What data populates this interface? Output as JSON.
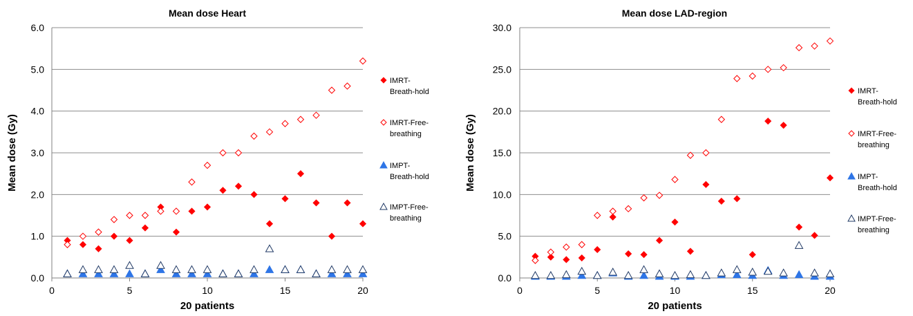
{
  "chart_data": [
    {
      "type": "scatter",
      "title": "Mean dose Heart",
      "xlabel": "20 patients",
      "ylabel": "Mean dose (Gy)",
      "xlim": [
        0,
        20
      ],
      "ylim": [
        0,
        6
      ],
      "xticks": [
        0,
        5,
        10,
        15,
        20
      ],
      "xtick_labels": [
        "0",
        "5",
        "10",
        "15",
        "20"
      ],
      "yticks": [
        0,
        1,
        2,
        3,
        4,
        5,
        6
      ],
      "ytick_labels": [
        "0.0",
        "1.0",
        "2.0",
        "3.0",
        "4.0",
        "5.0",
        "6.0"
      ],
      "grid": "horizontal",
      "legend_position": "right",
      "series": [
        {
          "name": "IMRT-Breath-hold",
          "legend_lines": [
            "IMRT-",
            "Breath-hold"
          ],
          "marker": "diamond",
          "filled": true,
          "color": "#ff0000",
          "x": [
            1,
            2,
            3,
            4,
            5,
            6,
            7,
            8,
            9,
            10,
            11,
            12,
            13,
            14,
            15,
            16,
            17,
            18,
            19,
            20
          ],
          "y": [
            0.9,
            0.8,
            0.7,
            1.0,
            0.9,
            1.2,
            1.7,
            1.1,
            1.6,
            1.7,
            2.1,
            2.2,
            2.0,
            1.3,
            1.9,
            2.5,
            1.8,
            1.0,
            1.8,
            1.3
          ]
        },
        {
          "name": "IMRT-Free-breathing",
          "legend_lines": [
            "IMRT-Free-",
            "breathing"
          ],
          "marker": "diamond",
          "filled": false,
          "color": "#ff0000",
          "x": [
            1,
            2,
            3,
            4,
            5,
            6,
            7,
            8,
            9,
            10,
            11,
            12,
            13,
            14,
            15,
            16,
            17,
            18,
            19,
            20
          ],
          "y": [
            0.8,
            1.0,
            1.1,
            1.4,
            1.5,
            1.5,
            1.6,
            1.6,
            2.3,
            2.7,
            3.0,
            3.0,
            3.4,
            3.5,
            3.7,
            3.8,
            3.9,
            4.5,
            4.6,
            5.2
          ]
        },
        {
          "name": "IMPT-Breath-hold",
          "legend_lines": [
            "IMPT-",
            "Breath-hold"
          ],
          "marker": "triangle",
          "filled": true,
          "color": "#2e75e6",
          "x": [
            1,
            2,
            3,
            4,
            5,
            6,
            7,
            8,
            9,
            10,
            11,
            12,
            13,
            14,
            15,
            16,
            17,
            18,
            19,
            20
          ],
          "y": [
            0.1,
            0.1,
            0.1,
            0.1,
            0.1,
            0.1,
            0.2,
            0.1,
            0.1,
            0.1,
            0.1,
            0.1,
            0.1,
            0.2,
            0.2,
            0.2,
            0.1,
            0.1,
            0.1,
            0.1
          ]
        },
        {
          "name": "IMPT-Free-breathing",
          "legend_lines": [
            "IMPT-Free-",
            "breathing"
          ],
          "marker": "triangle",
          "filled": false,
          "color": "#1f3864",
          "x": [
            1,
            2,
            3,
            4,
            5,
            6,
            7,
            8,
            9,
            10,
            11,
            12,
            13,
            14,
            15,
            16,
            17,
            18,
            19,
            20
          ],
          "y": [
            0.1,
            0.2,
            0.2,
            0.2,
            0.3,
            0.1,
            0.3,
            0.2,
            0.2,
            0.2,
            0.1,
            0.1,
            0.2,
            0.7,
            0.2,
            0.2,
            0.1,
            0.2,
            0.2,
            0.2
          ]
        }
      ]
    },
    {
      "type": "scatter",
      "title": "Mean dose LAD-region",
      "xlabel": "20 patients",
      "ylabel": "Mean dose (Gy)",
      "xlim": [
        0,
        20
      ],
      "ylim": [
        0,
        30
      ],
      "xticks": [
        0,
        5,
        10,
        15,
        20
      ],
      "xtick_labels": [
        "0",
        "5",
        "10",
        "15",
        "20"
      ],
      "yticks": [
        0,
        5,
        10,
        15,
        20,
        25,
        30
      ],
      "ytick_labels": [
        "0.0",
        "5.0",
        "10.0",
        "15.0",
        "20.0",
        "25.0",
        "30.0"
      ],
      "grid": "horizontal",
      "legend_position": "right",
      "series": [
        {
          "name": "IMRT-Breath-hold",
          "legend_lines": [
            "IMRT-",
            "Breath-hold"
          ],
          "marker": "diamond",
          "filled": true,
          "color": "#ff0000",
          "x": [
            1,
            2,
            3,
            4,
            5,
            6,
            7,
            8,
            9,
            10,
            11,
            12,
            13,
            14,
            15,
            16,
            17,
            18,
            19,
            20
          ],
          "y": [
            2.6,
            2.5,
            2.2,
            2.4,
            3.4,
            7.3,
            2.9,
            2.8,
            4.5,
            6.7,
            3.2,
            11.2,
            9.2,
            9.5,
            2.8,
            18.8,
            18.3,
            6.1,
            5.1,
            12.0
          ]
        },
        {
          "name": "IMRT-Free-breathing",
          "legend_lines": [
            "IMRT-Free-",
            "breathing"
          ],
          "marker": "diamond",
          "filled": false,
          "color": "#ff0000",
          "x": [
            1,
            2,
            3,
            4,
            5,
            6,
            7,
            8,
            9,
            10,
            11,
            12,
            13,
            14,
            15,
            16,
            17,
            18,
            19,
            20
          ],
          "y": [
            2.1,
            3.1,
            3.7,
            4.0,
            7.5,
            8.0,
            8.3,
            9.6,
            9.9,
            11.8,
            14.7,
            15.0,
            19.0,
            23.9,
            24.2,
            25.0,
            25.2,
            27.6,
            27.8,
            28.4
          ]
        },
        {
          "name": "IMPT-Breath-hold",
          "legend_lines": [
            "IMPT-",
            "Breath-hold"
          ],
          "marker": "triangle",
          "filled": true,
          "color": "#2e75e6",
          "x": [
            1,
            2,
            3,
            4,
            5,
            6,
            7,
            8,
            9,
            10,
            11,
            12,
            13,
            14,
            15,
            16,
            17,
            18,
            19,
            20
          ],
          "y": [
            0.2,
            0.2,
            0.2,
            0.3,
            0.3,
            0.6,
            0.2,
            0.3,
            0.2,
            0.2,
            0.2,
            0.3,
            0.4,
            0.4,
            0.3,
            0.9,
            0.3,
            0.4,
            0.2,
            0.2
          ]
        },
        {
          "name": "IMPT-Free-breathing",
          "legend_lines": [
            "IMPT-Free-",
            "breathing"
          ],
          "marker": "triangle",
          "filled": false,
          "color": "#1f3864",
          "x": [
            1,
            2,
            3,
            4,
            5,
            6,
            7,
            8,
            9,
            10,
            11,
            12,
            13,
            14,
            15,
            16,
            17,
            18,
            19,
            20
          ],
          "y": [
            0.3,
            0.3,
            0.4,
            0.8,
            0.3,
            0.7,
            0.3,
            1.0,
            0.5,
            0.3,
            0.4,
            0.3,
            0.6,
            1.0,
            0.7,
            0.8,
            0.6,
            3.9,
            0.6,
            0.5
          ]
        }
      ]
    }
  ]
}
